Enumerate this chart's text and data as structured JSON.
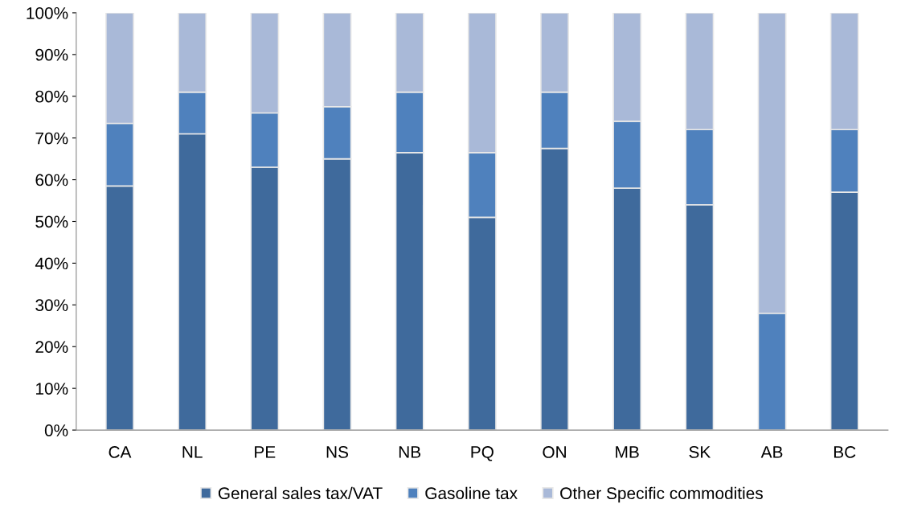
{
  "chart_data": {
    "type": "bar",
    "stacked": true,
    "categories": [
      "CA",
      "NL",
      "PE",
      "NS",
      "NB",
      "PQ",
      "ON",
      "MB",
      "SK",
      "AB",
      "BC"
    ],
    "series": [
      {
        "name": "General sales tax/VAT",
        "color": "#3f6a9c",
        "values": [
          58.5,
          71,
          63,
          65,
          66.5,
          51,
          67.5,
          58,
          54,
          0,
          57
        ]
      },
      {
        "name": "Gasoline tax",
        "color": "#4f81bd",
        "values": [
          15,
          10,
          13,
          12.5,
          14.5,
          15.5,
          13.5,
          16,
          18,
          28,
          15
        ]
      },
      {
        "name": "Other Specific commodities",
        "color": "#a9b9d8",
        "values": [
          26.5,
          19,
          24,
          22.5,
          19,
          33.5,
          19,
          26,
          28,
          72,
          28
        ]
      }
    ],
    "ylim": [
      0,
      100
    ],
    "yticks": [
      {
        "value": 0,
        "label": "0%"
      },
      {
        "value": 10,
        "label": "10%"
      },
      {
        "value": 20,
        "label": "20%"
      },
      {
        "value": 30,
        "label": "30%"
      },
      {
        "value": 40,
        "label": "40%"
      },
      {
        "value": 50,
        "label": "50%"
      },
      {
        "value": 60,
        "label": "60%"
      },
      {
        "value": 70,
        "label": "70%"
      },
      {
        "value": 80,
        "label": "80%"
      },
      {
        "value": 90,
        "label": "90%"
      },
      {
        "value": 100,
        "label": "100%"
      }
    ],
    "grid": false,
    "legend": "bottom"
  }
}
